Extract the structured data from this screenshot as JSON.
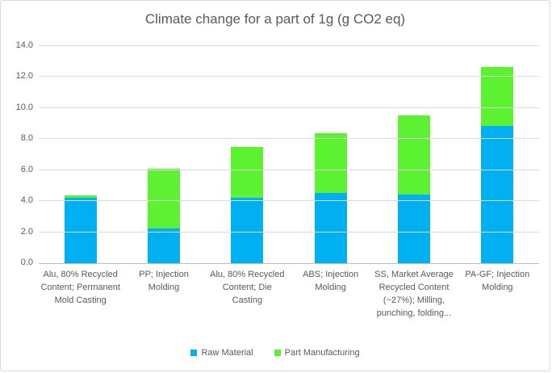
{
  "chart_data": {
    "type": "bar",
    "stacked": true,
    "title": "Climate change for a part of 1g (g CO2 eq)",
    "categories": [
      "Alu, 80% Recycled Content; Permanent Mold Casting",
      "PP; Injection Molding",
      "Alu, 80% Recycled Content; Die Casting",
      "ABS; Injection Molding",
      "SS, Market Average Recycled Content (~27%); Milling, punching, folding...",
      "PA-GF; Injection Molding"
    ],
    "series": [
      {
        "name": "Raw Material",
        "color": "#00B0F0",
        "values": [
          4.2,
          2.25,
          4.2,
          4.55,
          4.4,
          8.85
        ]
      },
      {
        "name": "Part Manufacturing",
        "color": "#5CF232",
        "values": [
          0.15,
          3.85,
          3.3,
          3.85,
          5.1,
          3.8
        ]
      }
    ],
    "stack_totals": [
      4.35,
      6.1,
      7.5,
      8.4,
      9.5,
      12.65
    ],
    "xlabel": "",
    "ylabel": "",
    "ylim": [
      0,
      14
    ],
    "ytick_step": 2,
    "ytick_labels": [
      "0.0",
      "2.0",
      "4.0",
      "6.0",
      "8.0",
      "10.0",
      "12.0",
      "14.0"
    ],
    "grid": true,
    "legend_position": "bottom"
  },
  "style": {
    "text_color": "#595959",
    "gridline_color": "#D9D9D9",
    "axis_line_color": "#BFBFBF",
    "border_color": "#D9D9D9",
    "background_color": "#FFFFFF"
  }
}
